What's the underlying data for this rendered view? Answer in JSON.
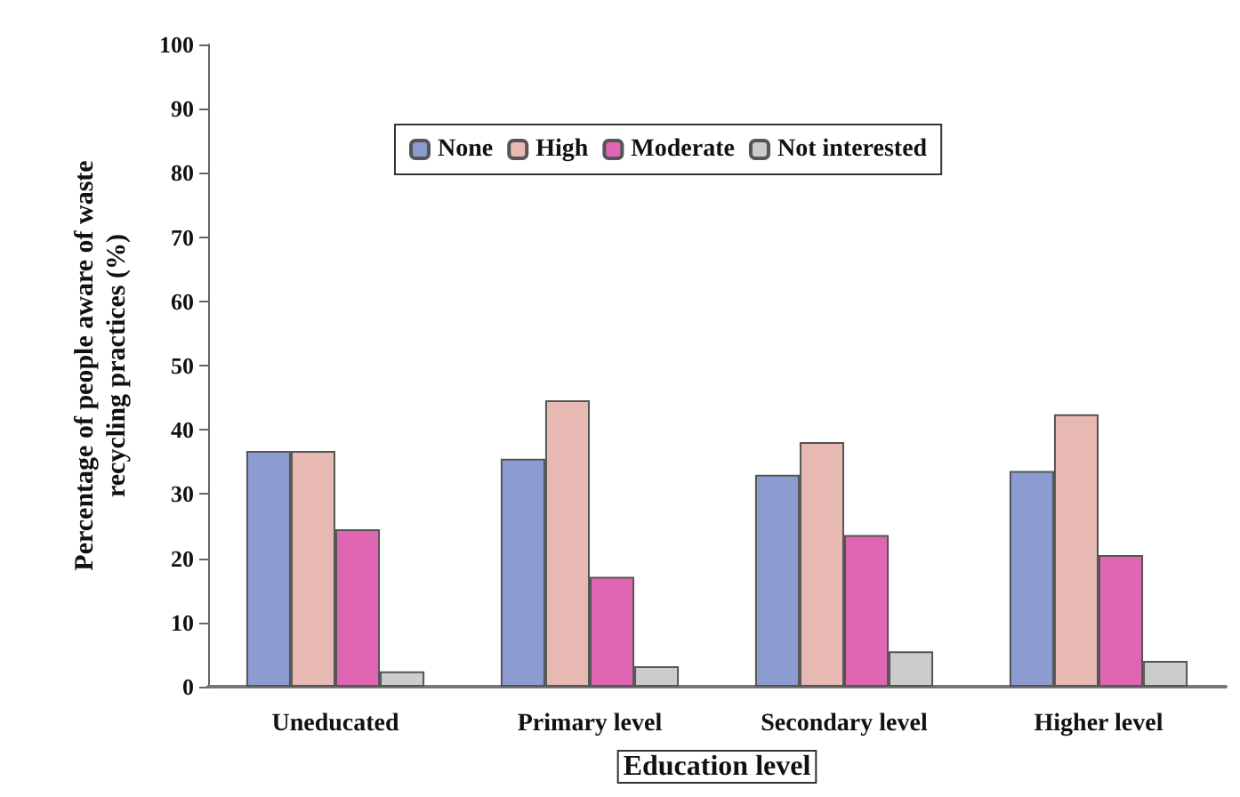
{
  "chart_data": {
    "type": "bar",
    "xlabel": "Education level",
    "ylabel": "Percentage of people aware of waste\nrecycling practices (%)",
    "categories": [
      "Uneducated",
      "Primary level",
      "Secondary level",
      "Higher level"
    ],
    "series": [
      {
        "name": "None",
        "color": "#8c9bd0",
        "values": [
          36.7,
          35.5,
          33.0,
          33.6
        ]
      },
      {
        "name": "High",
        "color": "#e8b8b2",
        "values": [
          36.7,
          44.6,
          38.1,
          42.4
        ]
      },
      {
        "name": "Moderate",
        "color": "#e066b4",
        "values": [
          24.5,
          17.1,
          23.6,
          20.5
        ]
      },
      {
        "name": "Not interested",
        "color": "#cccccc",
        "values": [
          2.4,
          3.2,
          5.5,
          4.0
        ]
      }
    ],
    "ylim": [
      0,
      100
    ],
    "yticks": [
      0,
      10,
      20,
      30,
      40,
      50,
      60,
      70,
      80,
      90,
      100
    ],
    "grid": false,
    "legend": "top"
  }
}
